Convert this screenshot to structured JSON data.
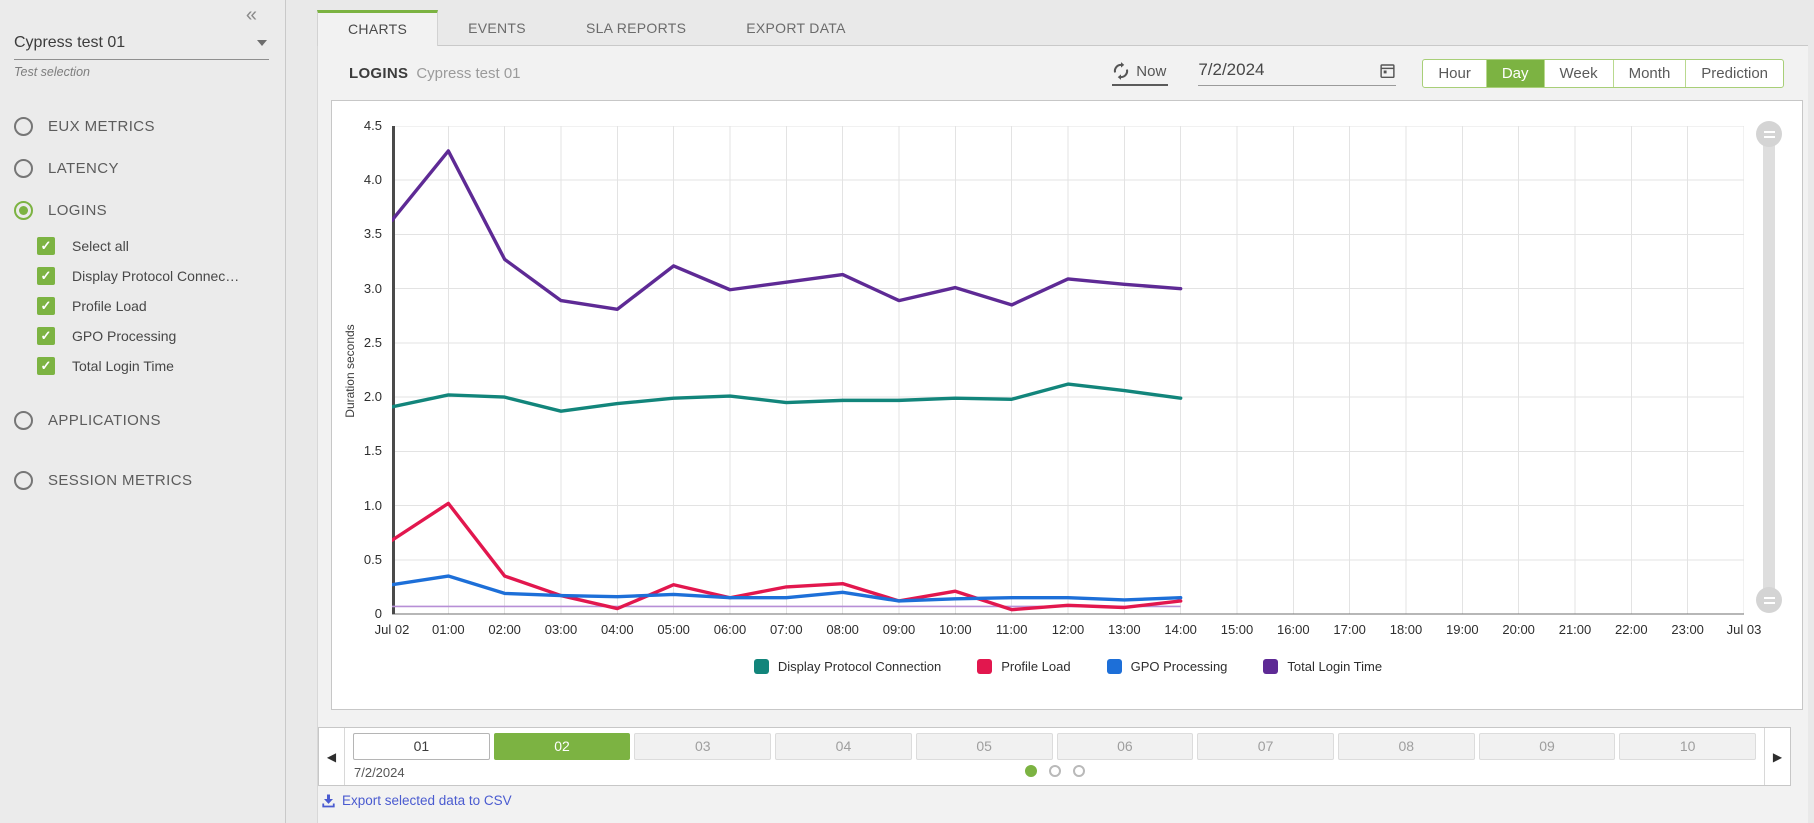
{
  "colors": {
    "accent_green": "#7cb342",
    "teal": "#12857b",
    "red": "#e2174e",
    "blue": "#1d6fd8",
    "purple": "#5e2a95",
    "baseline_purple": "#b78fd6"
  },
  "icons": {
    "collapse": "«",
    "prev": "◀",
    "next": "▶",
    "check": "✓"
  },
  "sidebar": {
    "test_select": {
      "value": "Cypress test 01",
      "label": "Test selection"
    },
    "nav": [
      {
        "label": "EUX METRICS",
        "selected": false
      },
      {
        "label": "LATENCY",
        "selected": false
      },
      {
        "label": "LOGINS",
        "selected": true,
        "children": [
          "Select all",
          "Display Protocol Connec…",
          "Profile Load",
          "GPO Processing",
          "Total Login Time"
        ]
      },
      {
        "label": "APPLICATIONS",
        "selected": false
      },
      {
        "label": "SESSION METRICS",
        "selected": false
      }
    ]
  },
  "tabs": [
    {
      "label": "CHARTS",
      "active": true
    },
    {
      "label": "EVENTS",
      "active": false
    },
    {
      "label": "SLA REPORTS",
      "active": false
    },
    {
      "label": "EXPORT DATA",
      "active": false
    }
  ],
  "header": {
    "title": "LOGINS",
    "subtitle": "Cypress test 01",
    "now_label": "Now",
    "date_value": "7/2/2024",
    "range_buttons": [
      {
        "label": "Hour",
        "active": false
      },
      {
        "label": "Day",
        "active": true
      },
      {
        "label": "Week",
        "active": false
      },
      {
        "label": "Month",
        "active": false
      },
      {
        "label": "Prediction",
        "active": false
      }
    ]
  },
  "chart_data": {
    "type": "line",
    "title": "LOGINS Cypress test 01",
    "xlabel": "",
    "ylabel": "Duration seconds",
    "ylim": [
      0,
      4.5
    ],
    "grid": true,
    "legend_position": "bottom",
    "y_tick_labels": [
      "0",
      "0.5",
      "1.0",
      "1.5",
      "2.0",
      "2.5",
      "3.0",
      "3.5",
      "4.0",
      "4.5"
    ],
    "x_labels": [
      "Jul 02",
      "01:00",
      "02:00",
      "03:00",
      "04:00",
      "05:00",
      "06:00",
      "07:00",
      "08:00",
      "09:00",
      "10:00",
      "11:00",
      "12:00",
      "13:00",
      "14:00",
      "15:00",
      "16:00",
      "17:00",
      "18:00",
      "19:00",
      "20:00",
      "21:00",
      "22:00",
      "23:00",
      "Jul 03"
    ],
    "x_hours_with_data": [
      0,
      1,
      2,
      3,
      4,
      5,
      6,
      7,
      8,
      9,
      10,
      11,
      12,
      13,
      14
    ],
    "series": [
      {
        "name": "Display Protocol Connection",
        "color": "#12857b",
        "values": [
          1.91,
          2.02,
          2.0,
          1.87,
          1.94,
          1.99,
          2.01,
          1.95,
          1.97,
          1.97,
          1.99,
          1.98,
          2.12,
          2.06,
          1.99
        ]
      },
      {
        "name": "Profile Load",
        "color": "#e2174e",
        "values": [
          0.68,
          1.02,
          0.35,
          0.17,
          0.05,
          0.27,
          0.15,
          0.25,
          0.28,
          0.12,
          0.21,
          0.04,
          0.08,
          0.06,
          0.12
        ]
      },
      {
        "name": "GPO Processing",
        "color": "#1d6fd8",
        "values": [
          0.27,
          0.35,
          0.19,
          0.17,
          0.16,
          0.18,
          0.15,
          0.15,
          0.2,
          0.12,
          0.14,
          0.15,
          0.15,
          0.13,
          0.15
        ]
      },
      {
        "name": "Total Login Time",
        "color": "#5e2a95",
        "values": [
          3.63,
          4.27,
          3.27,
          2.89,
          2.81,
          3.21,
          2.99,
          3.06,
          3.13,
          2.89,
          3.01,
          2.85,
          3.09,
          3.04,
          3.0
        ]
      }
    ],
    "baseline_series": {
      "color": "#b78fd6",
      "value": 0.07
    }
  },
  "day_strip": {
    "prev_icon": "◀",
    "next_icon": "▶",
    "days": [
      {
        "label": "01",
        "state": "today"
      },
      {
        "label": "02",
        "state": "selected"
      },
      {
        "label": "03",
        "state": ""
      },
      {
        "label": "04",
        "state": ""
      },
      {
        "label": "05",
        "state": ""
      },
      {
        "label": "06",
        "state": ""
      },
      {
        "label": "07",
        "state": ""
      },
      {
        "label": "08",
        "state": ""
      },
      {
        "label": "09",
        "state": ""
      },
      {
        "label": "10",
        "state": ""
      }
    ],
    "date_label": "7/2/2024",
    "dots": [
      {
        "active": true
      },
      {
        "active": false
      },
      {
        "active": false
      }
    ]
  },
  "export": {
    "label": "Export selected data to CSV"
  }
}
